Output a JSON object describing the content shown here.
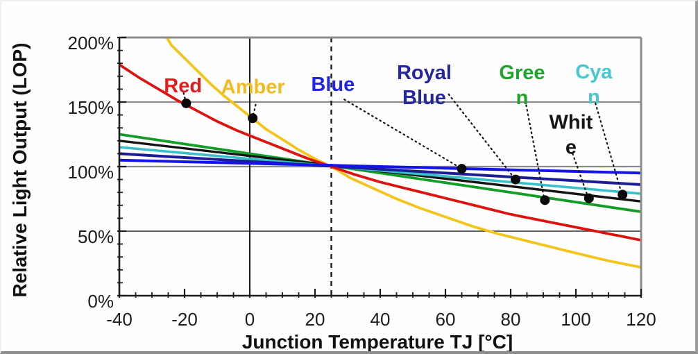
{
  "chart_data": {
    "type": "line",
    "title": "",
    "xlabel": "Junction Temperature TJ [°C]",
    "ylabel": "Relative Light Output (LOP)",
    "xlim": [
      -40,
      120
    ],
    "ylim": [
      0,
      200
    ],
    "x_ticks": [
      -40,
      -20,
      0,
      20,
      40,
      60,
      80,
      100,
      120
    ],
    "x_minor_step": 5,
    "y_ticks": [
      0,
      50,
      100,
      150,
      200
    ],
    "y_minor_step": 10,
    "y_tick_suffix": "%",
    "grid": {
      "horizontal_gray": [
        100,
        150
      ],
      "horizontal_dark": [
        50
      ],
      "vertical_solid_x": 0,
      "vertical_dashed_x": 25
    },
    "colors": {
      "grid_gray": "#8a8a8a",
      "grid_dark": "#2e2e2e",
      "axis_black": "#1c1c1c",
      "border_gray": "#8c8c8c",
      "leader": "#111111",
      "dot": "#0a0a0a"
    },
    "series": [
      {
        "name": "Green",
        "color": "#129c28",
        "width": 3.8,
        "points": [
          [
            -40,
            125
          ],
          [
            120,
            65
          ]
        ]
      },
      {
        "name": "White",
        "color": "#141414",
        "width": 3.4,
        "points": [
          [
            -40,
            120
          ],
          [
            120,
            73
          ]
        ]
      },
      {
        "name": "Cyan",
        "color": "#38c0ca",
        "width": 3.6,
        "points": [
          [
            -40,
            115
          ],
          [
            120,
            79
          ]
        ]
      },
      {
        "name": "Royal Blue",
        "color": "#1c1c96",
        "width": 4.0,
        "points": [
          [
            -40,
            110
          ],
          [
            120,
            86
          ]
        ]
      },
      {
        "name": "Amber",
        "color": "#f5c41b",
        "width": 3.8,
        "points": [
          [
            -40,
            262
          ],
          [
            -35,
            240
          ],
          [
            -30,
            220
          ],
          [
            -27,
            206
          ],
          [
            -24,
            194
          ],
          [
            -20,
            184
          ],
          [
            -16,
            174
          ],
          [
            -12,
            164
          ],
          [
            -8,
            155
          ],
          [
            -4,
            147
          ],
          [
            0,
            139
          ],
          [
            5,
            129
          ],
          [
            10,
            121
          ],
          [
            15,
            113
          ],
          [
            20,
            106
          ],
          [
            25,
            100
          ],
          [
            31,
            91
          ],
          [
            38,
            83
          ],
          [
            45,
            75
          ],
          [
            52,
            68
          ],
          [
            60,
            61
          ],
          [
            68,
            54
          ],
          [
            76,
            48
          ],
          [
            84,
            43
          ],
          [
            92,
            38
          ],
          [
            100,
            33
          ],
          [
            110,
            27
          ],
          [
            120,
            22
          ]
        ]
      },
      {
        "name": "Red",
        "color": "#dc1410",
        "width": 3.8,
        "points": [
          [
            -40,
            179
          ],
          [
            -34,
            169
          ],
          [
            -28,
            160
          ],
          [
            -22,
            151
          ],
          [
            -16,
            143
          ],
          [
            -10,
            135
          ],
          [
            -4,
            128
          ],
          [
            0,
            124
          ],
          [
            6,
            118
          ],
          [
            12,
            112
          ],
          [
            18,
            106
          ],
          [
            25,
            100
          ],
          [
            32,
            94
          ],
          [
            40,
            88
          ],
          [
            48,
            83
          ],
          [
            56,
            78
          ],
          [
            64,
            73
          ],
          [
            72,
            68
          ],
          [
            80,
            63
          ],
          [
            88,
            59
          ],
          [
            96,
            55
          ],
          [
            104,
            51
          ],
          [
            112,
            47
          ],
          [
            120,
            43
          ]
        ]
      },
      {
        "name": "Blue",
        "color": "#1414e6",
        "width": 4.0,
        "points": [
          [
            -40,
            105
          ],
          [
            120,
            95
          ]
        ]
      }
    ],
    "annotations": [
      {
        "id": "red",
        "lines": [
          "Red"
        ],
        "color": "#e21c1c",
        "label_t": -20.5,
        "label_lop": 163,
        "leader": [
          [
            -20.3,
            157
          ],
          [
            -19.6,
            150
          ]
        ],
        "dot": [
          -19.5,
          149
        ]
      },
      {
        "id": "amber",
        "lines": [
          "Amber"
        ],
        "color": "#f0ba20",
        "label_t": 1,
        "label_lop": 162,
        "leader": [
          [
            1.8,
            148
          ],
          [
            1.0,
            139
          ]
        ],
        "dot": [
          0.9,
          137.5
        ]
      },
      {
        "id": "blue",
        "lines": [
          "Blue"
        ],
        "color": "#2323ee",
        "label_t": 25.5,
        "label_lop": 164,
        "leader": [
          [
            29,
            152
          ],
          [
            64.6,
            99
          ]
        ],
        "dot": [
          65,
          98.3
        ]
      },
      {
        "id": "royal-blue",
        "lines": [
          "Royal",
          "Blue"
        ],
        "color": "#26269e",
        "label_t": 53.5,
        "label_lop": 163.5,
        "leader": [
          [
            61,
            156
          ],
          [
            81.2,
            90.8
          ]
        ],
        "dot": [
          81.5,
          90
        ]
      },
      {
        "id": "green",
        "lines": [
          "Gree",
          "n"
        ],
        "color": "#1ea32c",
        "label_t": 83.5,
        "label_lop": 163.5,
        "leader": [
          [
            84.5,
            151
          ],
          [
            90.3,
            75
          ]
        ],
        "dot": [
          90.5,
          74
        ]
      },
      {
        "id": "cyan",
        "lines": [
          "Cya",
          "n"
        ],
        "color": "#45c8ce",
        "label_t": 105.5,
        "label_lop": 164,
        "leader": [
          [
            106,
            149
          ],
          [
            114,
            79.5
          ]
        ],
        "dot": [
          114.3,
          78.3
        ]
      },
      {
        "id": "white",
        "lines": [
          "Whit",
          "e"
        ],
        "color": "#161616",
        "label_t": 98.5,
        "label_lop": 125,
        "leader": [
          [
            99,
            110
          ],
          [
            103.7,
            76.5
          ]
        ],
        "dot": [
          104,
          75.5
        ]
      }
    ]
  }
}
